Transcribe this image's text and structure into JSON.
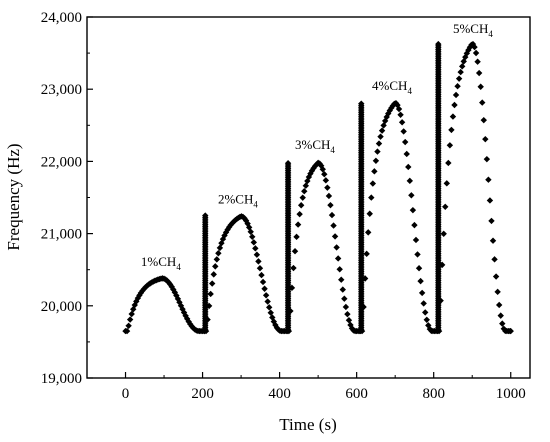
{
  "chart_data": {
    "type": "scatter",
    "title": "",
    "xlabel": "Time (s)",
    "ylabel": "Frequency (Hz)",
    "xlim": [
      -100,
      1050
    ],
    "ylim": [
      19000,
      24000
    ],
    "xticks": [
      0,
      200,
      400,
      600,
      800,
      1000
    ],
    "xtick_labels": [
      "0",
      "200",
      "400",
      "600",
      "800",
      "1000"
    ],
    "yticks": [
      19000,
      20000,
      21000,
      22000,
      23000,
      24000
    ],
    "ytick_labels": [
      "19,000",
      "20,000",
      "21,000",
      "22,000",
      "23,000",
      "24,000"
    ],
    "grid": false,
    "marker": "diamond",
    "color": "#000000",
    "baseline": 19650,
    "cycles": [
      {
        "start": 0,
        "peak_time": 95,
        "peak": 20380,
        "end": 205
      },
      {
        "start": 205,
        "peak_time": 300,
        "peak": 21240,
        "end": 420
      },
      {
        "start": 420,
        "peak_time": 500,
        "peak": 21980,
        "end": 610
      },
      {
        "start": 610,
        "peak_time": 700,
        "peak": 22810,
        "end": 810
      },
      {
        "start": 810,
        "peak_time": 900,
        "peak": 23630,
        "end": 1000
      }
    ],
    "annotations": [
      {
        "prefix": "1%CH",
        "sub": "4",
        "x": 40,
        "y": 20550
      },
      {
        "prefix": "2%CH",
        "sub": "4",
        "x": 240,
        "y": 21420
      },
      {
        "prefix": "3%CH",
        "sub": "4",
        "x": 440,
        "y": 22170
      },
      {
        "prefix": "4%CH",
        "sub": "4",
        "x": 640,
        "y": 22990
      },
      {
        "prefix": "5%CH",
        "sub": "4",
        "x": 850,
        "y": 23780
      }
    ]
  }
}
